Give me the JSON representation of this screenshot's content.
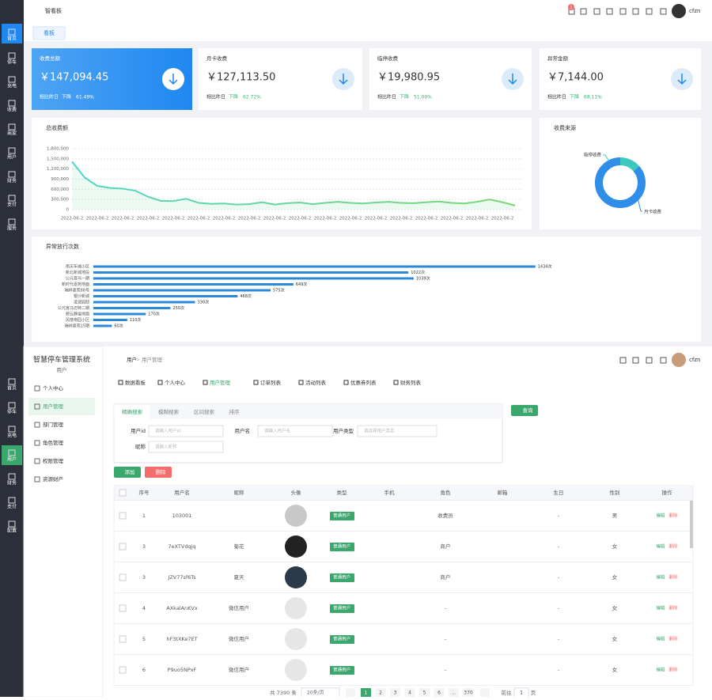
{
  "dashboard": {
    "sidebar": [
      "首页",
      "停车",
      "充电",
      "收费",
      "商家",
      "用户",
      "财务",
      "支付",
      "服务"
    ],
    "header": {
      "breadcrumb": "智看板",
      "badge": "1",
      "user": "cfzn"
    },
    "tab": "看板",
    "cards": [
      {
        "title": "收费总额",
        "amount": "￥147,094.45",
        "compare": "相比昨日",
        "trend": "下降",
        "pct": "61.49%"
      },
      {
        "title": "月卡收费",
        "amount": "￥127,113.50",
        "compare": "相比昨日",
        "trend": "下降",
        "pct": "62.72%"
      },
      {
        "title": "临停收费",
        "amount": "￥19,980.95",
        "compare": "相比昨日",
        "trend": "下降",
        "pct": "51.00%"
      },
      {
        "title": "异常金额",
        "amount": "￥7,144.00",
        "compare": "相比昨日",
        "trend": "下降",
        "pct": "68.11%"
      }
    ],
    "line_chart": {
      "type": "line",
      "title": "总收费额",
      "color": "#6fd58a",
      "categories": [
        "2022-06-2",
        null,
        "2022-06-2",
        null,
        "2022-06-2",
        null,
        "2022-06-2",
        null,
        "2022-06-2",
        null,
        "2022-06-2",
        null,
        "2022-06-2",
        null,
        "2022-06-2",
        null,
        "2022-06-2",
        null,
        "2022-06-2",
        null,
        "2022-06-2",
        null,
        "2022-06-2",
        null,
        "2022-06-2",
        null,
        "2022-06-2",
        null,
        "2022-06-2",
        null,
        "2022-06-2",
        null,
        "2022-06-2",
        null,
        "2022-06-2",
        null
      ],
      "values": [
        1420000,
        950000,
        700000,
        640000,
        620000,
        560000,
        380000,
        260000,
        250000,
        320000,
        200000,
        170000,
        180000,
        150000,
        160000,
        220000,
        150000,
        190000,
        210000,
        160000,
        200000,
        230000,
        200000,
        180000,
        210000,
        230000,
        200000,
        190000,
        220000,
        240000,
        200000,
        180000,
        230000,
        300000,
        220000,
        120000
      ],
      "ylim": [
        0,
        1800000
      ],
      "yticks": [
        0,
        {
          "value": 300000,
          "label": "300,000"
        },
        {
          "value": 600000,
          "label": "600,000"
        },
        {
          "value": 900000,
          "label": "900,000"
        },
        {
          "value": 1200000,
          "label": "1,200,000"
        },
        {
          "value": 1500000,
          "label": "1,500,000"
        },
        {
          "value": 1800000,
          "label": "1,800,000"
        }
      ],
      "grid": true
    },
    "donut": {
      "type": "pie",
      "title": "收费来源",
      "categories": [
        "临停收费",
        "月卡收费"
      ],
      "values": [
        19980.95,
        127113.5
      ],
      "colors": [
        "#3bc9c0",
        "#2f8fe8"
      ]
    },
    "bar_chart": {
      "type": "bar",
      "title": "异常放行次数",
      "color": "#2c88d9",
      "xlim": [
        0,
        1450
      ],
      "categories": [
        "南天车城小区",
        "新北新城地段",
        "公元宫马一期",
        "新时代嘉苑地面",
        "瑞祥嘉苑88号",
        "银沙新城",
        "凌波园邸",
        "公元宫马迈特二期",
        "碧云静谧地面",
        "风度南园小区",
        "瑞祥嘉苑15期"
      ],
      "values": [
        1434,
        1022,
        1039,
        649,
        575,
        468,
        330,
        250,
        170,
        110,
        60
      ],
      "value_labels": [
        "1434次",
        "1022次",
        "1039次",
        "649次",
        "575次",
        "468次",
        "330次",
        "250次",
        "170次",
        "110次",
        "60次"
      ]
    }
  },
  "users": {
    "sidebar": [
      "首页",
      "停车",
      "充电",
      "用户",
      "财务",
      "支付",
      "配置"
    ],
    "brand": "智慧停车管理系统",
    "section": "用户",
    "menu": [
      "个人中心",
      "用户管理",
      "部门管理",
      "角色管理",
      "权限管理",
      "资源财产"
    ],
    "breadcrumb": [
      "用户",
      "用户管理"
    ],
    "user": "cfzn",
    "tabs": [
      "数据看板",
      "个人中心",
      "用户管理",
      "订单列表",
      "活动列表",
      "优惠券列表",
      "财务列表"
    ],
    "search": {
      "tabs": [
        "精确搜索",
        "模糊搜索",
        "区间搜索",
        "排序"
      ],
      "fields": [
        {
          "label": "用户id",
          "placeholder": "请输入用户id"
        },
        {
          "label": "用户名",
          "placeholder": "请输入用户名"
        },
        {
          "label": "用户类型",
          "placeholder": "请选择用户类型"
        },
        {
          "label": "昵称",
          "placeholder": "请输入昵称"
        }
      ],
      "button": "查询"
    },
    "actions": [
      "添加",
      "删除"
    ],
    "table": {
      "headers": [
        "序号",
        "用户名",
        "昵称",
        "头像",
        "类型",
        "手机",
        "角色",
        "邮箱",
        "生日",
        "性别",
        "操作"
      ],
      "ops": [
        "编辑",
        "删除"
      ],
      "rows": [
        {
          "no": 1,
          "username": "103001",
          "type": "普通用户",
          "role": "收费员",
          "birthday": "-",
          "gender": "男"
        },
        {
          "no": 3,
          "username": "7eXTVdqjq",
          "nickname": "菊花",
          "type": "普通用户",
          "role": "商户",
          "birthday": "-",
          "gender": "女"
        },
        {
          "no": 3,
          "username": "JZV77sf6Ts",
          "nickname": "夏天",
          "type": "普通用户",
          "role": "商户",
          "birthday": "-",
          "gender": "女"
        },
        {
          "no": 4,
          "username": "AXkalAnKVx",
          "nickname": "微信用户",
          "type": "普通用户",
          "role": "-",
          "birthday": "-",
          "gender": "女"
        },
        {
          "no": 5,
          "username": "hF3tXKe7ET",
          "nickname": "微信用户",
          "type": "普通用户",
          "role": "-",
          "birthday": "-",
          "gender": "女"
        },
        {
          "no": 6,
          "username": "P9uo5NPxF",
          "nickname": "微信用户",
          "type": "普通用户",
          "role": "-",
          "birthday": "-",
          "gender": "女"
        }
      ]
    },
    "pagination": {
      "total": "共 7390 条",
      "size": "20条/页",
      "pages": [
        "1",
        "2",
        "3",
        "4",
        "5",
        "6",
        "…",
        "370"
      ],
      "goto": "前往",
      "goto_value": "1",
      "unit": "页"
    }
  }
}
